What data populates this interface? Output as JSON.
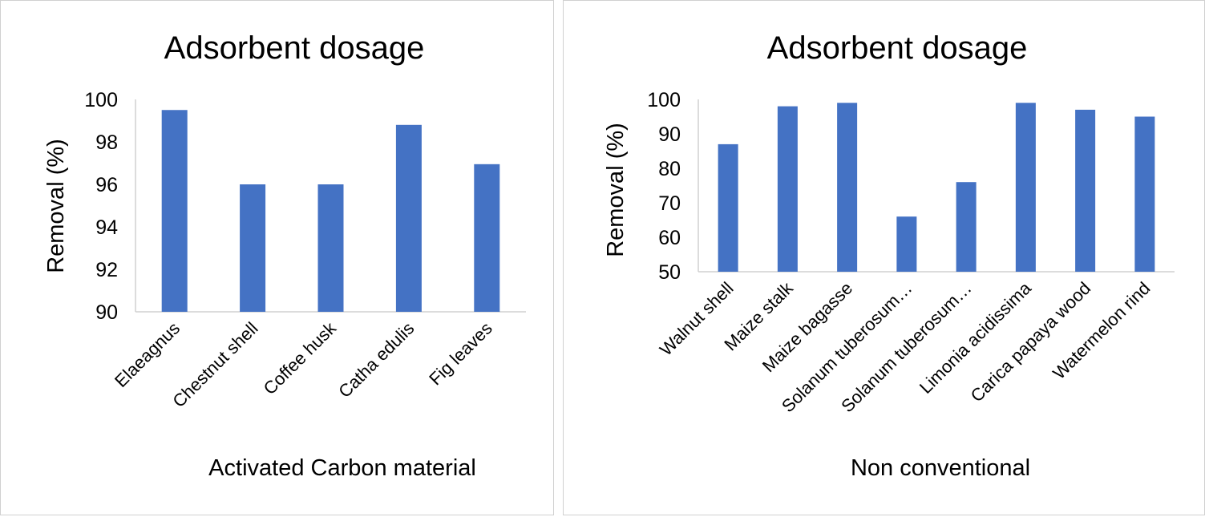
{
  "chart_data": [
    {
      "type": "bar",
      "title": "Adsorbent dosage",
      "xlabel": "Activated Carbon material",
      "ylabel": "Removal (%)",
      "ylim": [
        90,
        100
      ],
      "yticks": [
        90,
        92,
        94,
        96,
        98,
        100
      ],
      "categories": [
        "Elaeagnus",
        "Chestnut shell",
        "Coffee husk",
        "Catha edulis",
        "Fig leaves"
      ],
      "values": [
        99.5,
        96.0,
        96.0,
        98.8,
        96.95
      ],
      "color": "#4472c4",
      "grid": false
    },
    {
      "type": "bar",
      "title": "Adsorbent dosage",
      "xlabel": "Non conventional",
      "ylabel": "Removal (%)",
      "ylim": [
        50,
        100
      ],
      "yticks": [
        50,
        60,
        70,
        80,
        90,
        100
      ],
      "categories": [
        "Walnut shell",
        "Maize stalk",
        "Maize bagasse",
        "Solanum tuberosum…",
        "Solanum tuberosum…",
        "Limonia acidissima",
        "Carica papaya wood",
        "Watermelon rind"
      ],
      "values": [
        87,
        98,
        99,
        66,
        76,
        99,
        97,
        95
      ],
      "color": "#4472c4",
      "grid": false
    }
  ]
}
